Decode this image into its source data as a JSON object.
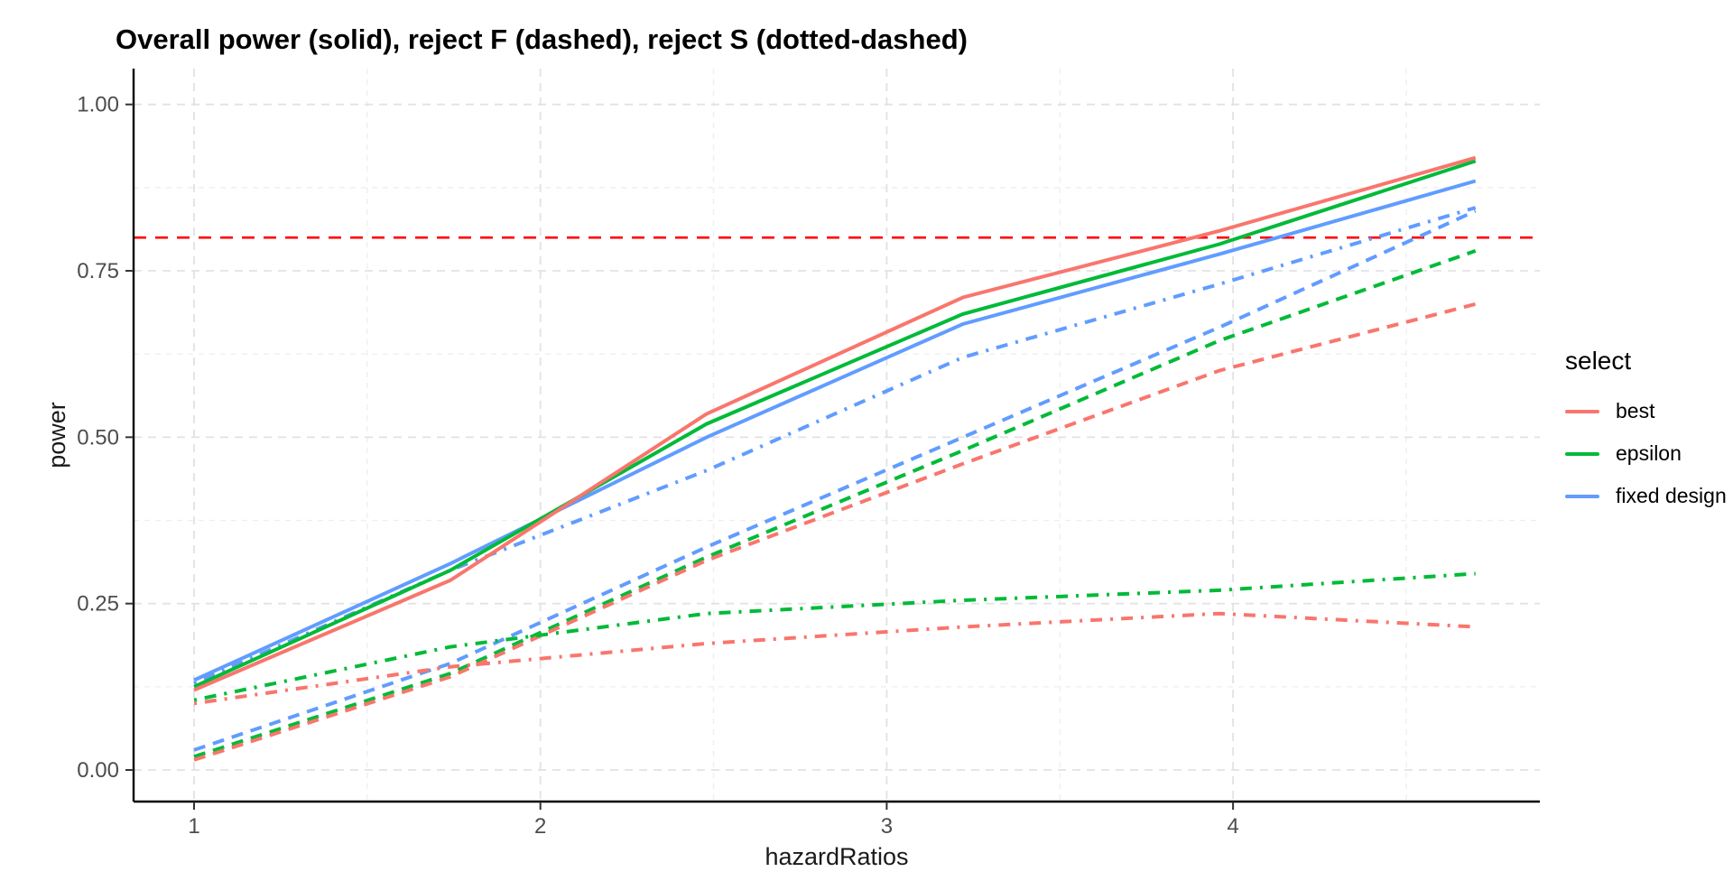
{
  "chart_data": {
    "type": "line",
    "title": "Overall power (solid), reject F (dashed), reject S (dotted-dashed)",
    "xlabel": "hazardRatios",
    "ylabel": "power",
    "x_tick_labels": [
      "1",
      "2",
      "3",
      "4"
    ],
    "x_tick_values": [
      1,
      2,
      3,
      4
    ],
    "x_minor_gridlines": [
      1.5,
      2.5,
      3.5,
      4.5
    ],
    "y_tick_labels": [
      "0.00",
      "0.25",
      "0.50",
      "0.75",
      "1.00"
    ],
    "y_tick_values": [
      0,
      0.25,
      0.5,
      0.75,
      1.0
    ],
    "y_minor_gridlines": [
      0.125,
      0.375,
      0.625,
      0.875
    ],
    "xlim": [
      0.82,
      4.89
    ],
    "ylim": [
      -0.05,
      1.05
    ],
    "grid": true,
    "x": [
      1.0,
      1.74,
      2.48,
      3.22,
      3.96,
      4.7
    ],
    "reference_line": {
      "y": 0.8,
      "color": "#FF0000",
      "linetype": "dashed"
    },
    "series": [
      {
        "select": "best",
        "measure": "overall power",
        "linetype": "solid",
        "color": "#F8766D",
        "values": [
          0.12,
          0.285,
          0.535,
          0.71,
          0.81,
          0.92
        ]
      },
      {
        "select": "epsilon",
        "measure": "overall power",
        "linetype": "solid",
        "color": "#00BA38",
        "values": [
          0.125,
          0.3,
          0.52,
          0.685,
          0.79,
          0.915
        ]
      },
      {
        "select": "fixed design",
        "measure": "overall power",
        "linetype": "solid",
        "color": "#619CFF",
        "values": [
          0.135,
          0.31,
          0.5,
          0.67,
          0.775,
          0.885
        ]
      },
      {
        "select": "best",
        "measure": "reject F",
        "linetype": "dashed",
        "color": "#F8766D",
        "values": [
          0.015,
          0.14,
          0.315,
          0.46,
          0.6,
          0.7
        ]
      },
      {
        "select": "epsilon",
        "measure": "reject F",
        "linetype": "dashed",
        "color": "#00BA38",
        "values": [
          0.02,
          0.145,
          0.32,
          0.48,
          0.645,
          0.78
        ]
      },
      {
        "select": "fixed design",
        "measure": "reject F",
        "linetype": "dashed",
        "color": "#619CFF",
        "values": [
          0.03,
          0.16,
          0.335,
          0.5,
          0.665,
          0.84
        ]
      },
      {
        "select": "best",
        "measure": "reject S",
        "linetype": "dotdash",
        "color": "#F8766D",
        "values": [
          0.1,
          0.155,
          0.19,
          0.215,
          0.235,
          0.215
        ]
      },
      {
        "select": "epsilon",
        "measure": "reject S",
        "linetype": "dotdash",
        "color": "#00BA38",
        "values": [
          0.105,
          0.185,
          0.235,
          0.255,
          0.27,
          0.295
        ]
      },
      {
        "select": "fixed design",
        "measure": "reject S",
        "linetype": "dotdash",
        "color": "#619CFF",
        "values": [
          0.13,
          0.3,
          0.45,
          0.62,
          0.73,
          0.845
        ]
      }
    ],
    "legend": {
      "title": "select",
      "position": "right",
      "items": [
        {
          "label": "best",
          "color": "#F8766D"
        },
        {
          "label": "epsilon",
          "color": "#00BA38"
        },
        {
          "label": "fixed design",
          "color": "#619CFF"
        }
      ]
    }
  }
}
